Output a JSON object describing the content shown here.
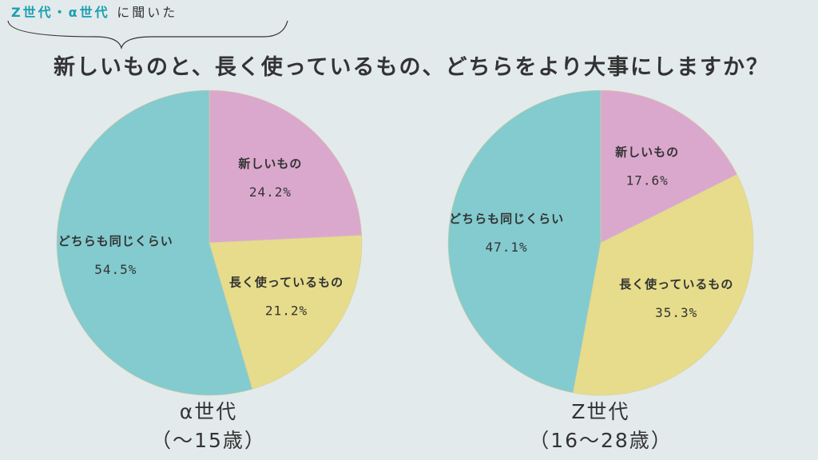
{
  "header": {
    "tag_highlight": "Z世代・α世代",
    "tag_rest": "に聞いた",
    "question": "新しいものと、長く使っているもの、どちらをより大事にしますか？"
  },
  "colors": {
    "new": "#dba8cd",
    "long_used": "#e6dc8b",
    "same": "#83cbcf",
    "accent": "#1b9fb2"
  },
  "chart_data": [
    {
      "type": "pie",
      "title": "α世代",
      "subtitle": "（〜15歳）",
      "categories": [
        "新しいもの",
        "長く使っているもの",
        "どちらも同じくらい"
      ],
      "values": [
        24.2,
        21.2,
        54.5
      ],
      "labels": [
        "24.2%",
        "21.2%",
        "54.5%"
      ]
    },
    {
      "type": "pie",
      "title": "Z世代",
      "subtitle": "（16〜28歳）",
      "categories": [
        "新しいもの",
        "長く使っているもの",
        "どちらも同じくらい"
      ],
      "values": [
        17.6,
        35.3,
        47.1
      ],
      "labels": [
        "17.6%",
        "35.3%",
        "47.1%"
      ]
    }
  ]
}
